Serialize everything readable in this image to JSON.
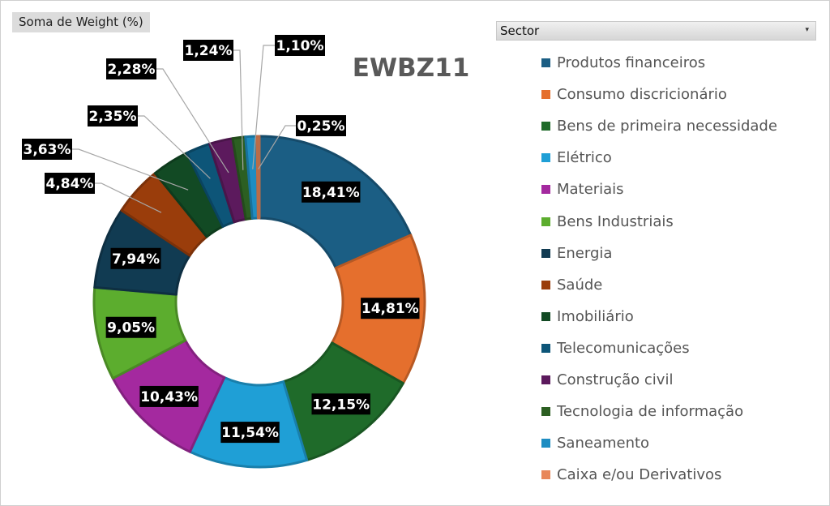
{
  "field_button": {
    "label": "Soma de Weight (%)"
  },
  "filter": {
    "label": "Sector",
    "caret": "▾"
  },
  "chart_data": {
    "type": "pie",
    "style": "donut",
    "title": "EWBZ11",
    "categories": [
      "Produtos financeiros",
      "Consumo discricionário",
      "Bens de primeira necessidade",
      "Elétrico",
      "Materiais",
      "Bens Industriais",
      "Energia",
      "Saúde",
      "Imobiliário",
      "Telecomunicações",
      "Construção civil",
      "Tecnologia de informação",
      "Saneamento",
      "Caixa e/ou Derivativos"
    ],
    "values": [
      18.41,
      14.81,
      12.15,
      11.54,
      10.43,
      9.05,
      7.94,
      4.84,
      3.63,
      2.35,
      2.28,
      1.24,
      1.1,
      0.25
    ],
    "data_labels": [
      "18,41%",
      "14,81%",
      "12,15%",
      "11,54%",
      "10,43%",
      "9,05%",
      "7,94%",
      "4,84%",
      "3,63%",
      "2,35%",
      "2,28%",
      "1,24%",
      "1,10%",
      "0,25%"
    ],
    "colors": [
      "#1b5e84",
      "#e56f2d",
      "#1f6b2a",
      "#1f9fd6",
      "#a4299f",
      "#5cad2e",
      "#113b52",
      "#9a3d0b",
      "#124a24",
      "#0d5578",
      "#5c1a5d",
      "#2c5f22",
      "#1e8dc2",
      "#e8875a"
    ],
    "legend_position": "right"
  }
}
